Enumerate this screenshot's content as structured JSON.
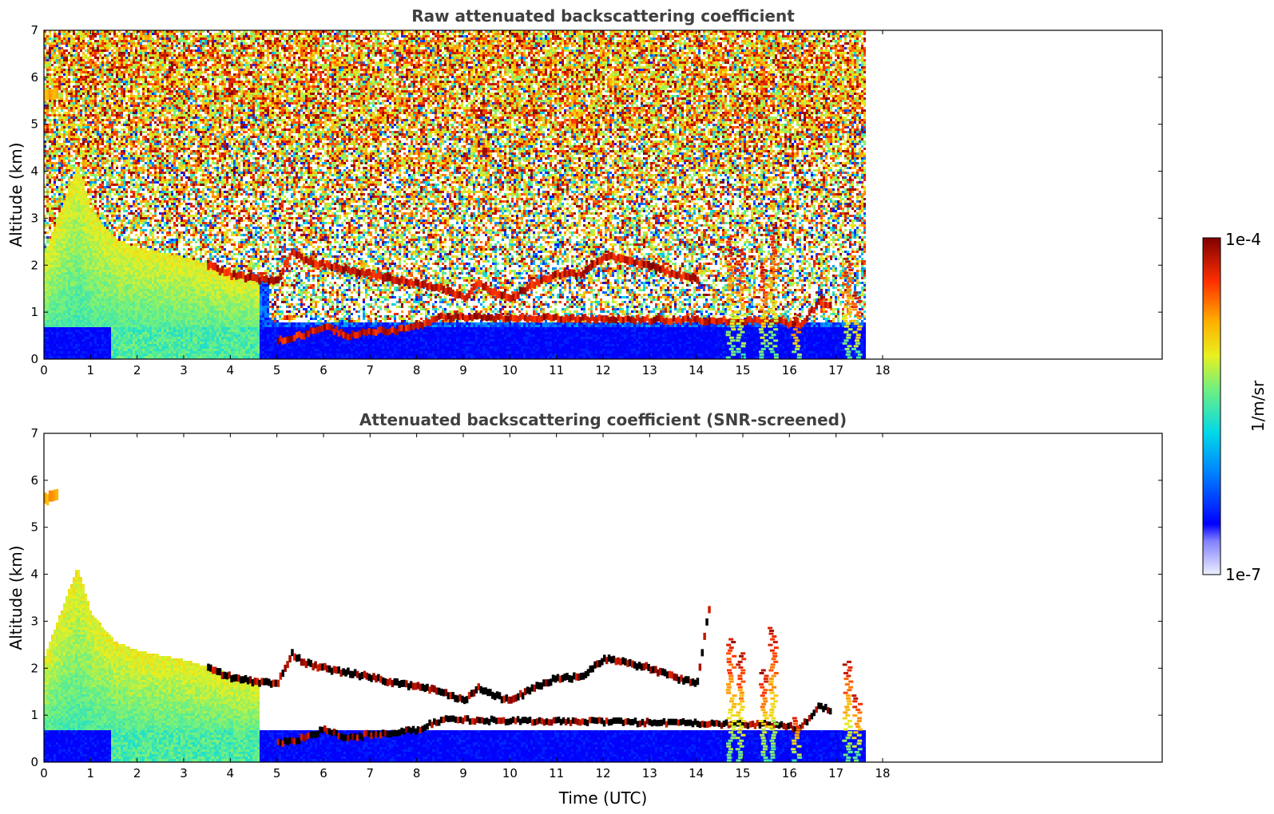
{
  "chart_data": [
    {
      "type": "heatmap",
      "title": "Raw attenuated backscattering coefficient",
      "xlabel": "",
      "ylabel": "Altitude (km)",
      "xlim": [
        0,
        24
      ],
      "ylim": [
        0,
        7
      ],
      "x_ticks": [
        "0",
        "1",
        "2",
        "3",
        "4",
        "5",
        "6",
        "7",
        "8",
        "9",
        "10",
        "11",
        "12",
        "13",
        "14",
        "15",
        "16",
        "17",
        "18"
      ],
      "y_ticks": [
        "0",
        "1",
        "2",
        "3",
        "4",
        "5",
        "6",
        "7"
      ],
      "data_extent_hours": [
        0,
        17.6
      ],
      "colorscale": "jet",
      "screened": false,
      "features": {
        "noisy_background_above_km": 2.5,
        "aerosol_layer_top": [
          [
            0,
            2.3
          ],
          [
            0.7,
            4.2
          ],
          [
            1,
            3.2
          ],
          [
            1.5,
            2.6
          ],
          [
            2,
            2.4
          ],
          [
            3,
            2.2
          ],
          [
            4,
            1.9
          ],
          [
            4.8,
            1.7
          ]
        ],
        "cloud_layer": [
          [
            3.5,
            2.0
          ],
          [
            4,
            1.8
          ],
          [
            4.5,
            1.7
          ],
          [
            5,
            1.7
          ],
          [
            5.3,
            2.3
          ],
          [
            5.6,
            2.1
          ],
          [
            6,
            2.0
          ],
          [
            6.5,
            1.9
          ],
          [
            7,
            1.8
          ],
          [
            7.5,
            1.7
          ],
          [
            8,
            1.6
          ],
          [
            8.5,
            1.5
          ],
          [
            9,
            1.3
          ],
          [
            9.3,
            1.6
          ],
          [
            9.7,
            1.4
          ],
          [
            10,
            1.3
          ],
          [
            10.5,
            1.6
          ],
          [
            11,
            1.8
          ],
          [
            11.5,
            1.8
          ],
          [
            12,
            2.2
          ],
          [
            12.5,
            2.1
          ],
          [
            13,
            2.0
          ],
          [
            13.5,
            1.8
          ],
          [
            14,
            1.7
          ],
          [
            14.3,
            3.6
          ]
        ],
        "low_cloud_layer": [
          [
            5,
            0.4
          ],
          [
            5.5,
            0.5
          ],
          [
            6,
            0.7
          ],
          [
            6.5,
            0.5
          ],
          [
            7,
            0.6
          ],
          [
            7.5,
            0.6
          ],
          [
            8,
            0.7
          ],
          [
            8.5,
            0.9
          ],
          [
            15.8,
            0.8
          ],
          [
            16.2,
            0.7
          ],
          [
            16.6,
            1.2
          ],
          [
            16.9,
            1.1
          ]
        ],
        "elevated_aerosol": [
          [
            0,
            5.6
          ],
          [
            0.3,
            5.7
          ]
        ]
      }
    },
    {
      "type": "heatmap",
      "title": "Attenuated backscattering coefficient (SNR-screened)",
      "xlabel": "Time (UTC)",
      "ylabel": "Altitude (km)",
      "xlim": [
        0,
        24
      ],
      "ylim": [
        0,
        7
      ],
      "x_ticks": [
        "0",
        "1",
        "2",
        "3",
        "4",
        "5",
        "6",
        "7",
        "8",
        "9",
        "10",
        "11",
        "12",
        "13",
        "14",
        "15",
        "16",
        "17",
        "18"
      ],
      "y_ticks": [
        "0",
        "1",
        "2",
        "3",
        "4",
        "5",
        "6",
        "7"
      ],
      "data_extent_hours": [
        0,
        17.6
      ],
      "colorscale": "jet",
      "screened": true
    }
  ],
  "colorbar": {
    "label": "1/m/sr",
    "max_label": "1e-4",
    "min_label": "1e-7",
    "min_value": 1e-07,
    "max_value": 0.0001,
    "scale": "log"
  }
}
